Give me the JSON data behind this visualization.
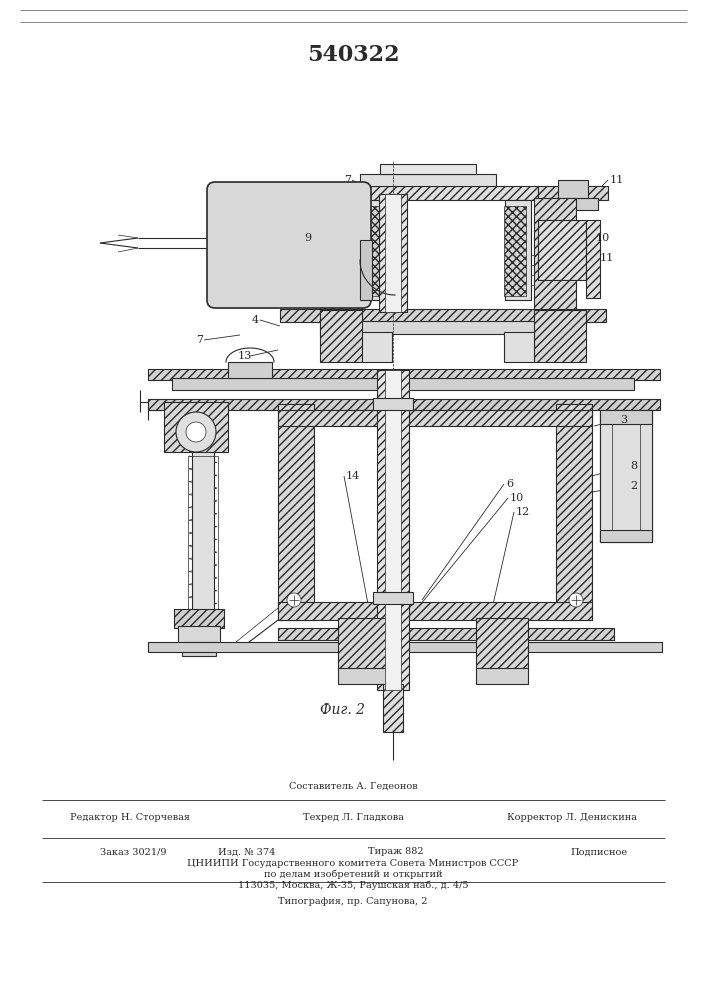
{
  "title": "540322",
  "fig_label": "Фиг. 2",
  "background_color": "#ffffff",
  "line_color": "#2a2a2a",
  "title_fontsize": 14,
  "footer": {
    "line1": "Составитель А. Гедеонов",
    "line2_left": "Редактор Н. Сторчевая",
    "line2_mid": "Техред Л. Гладкова",
    "line2_right": "Корректор Л. Денискина",
    "line3_1": "Заказ 3021/9",
    "line3_2": "Изд. № 374",
    "line3_3": "Тираж 882",
    "line3_4": "Подписное",
    "line4": "ЦНИИПИ Государственного комитета Совета Министров СССР",
    "line5": "по делам изобретений и открытий",
    "line6": "113035, Москва, Ж-35, Раушская наб., д. 4/5",
    "line7": "Типография, пр. Сапунова, 2"
  }
}
